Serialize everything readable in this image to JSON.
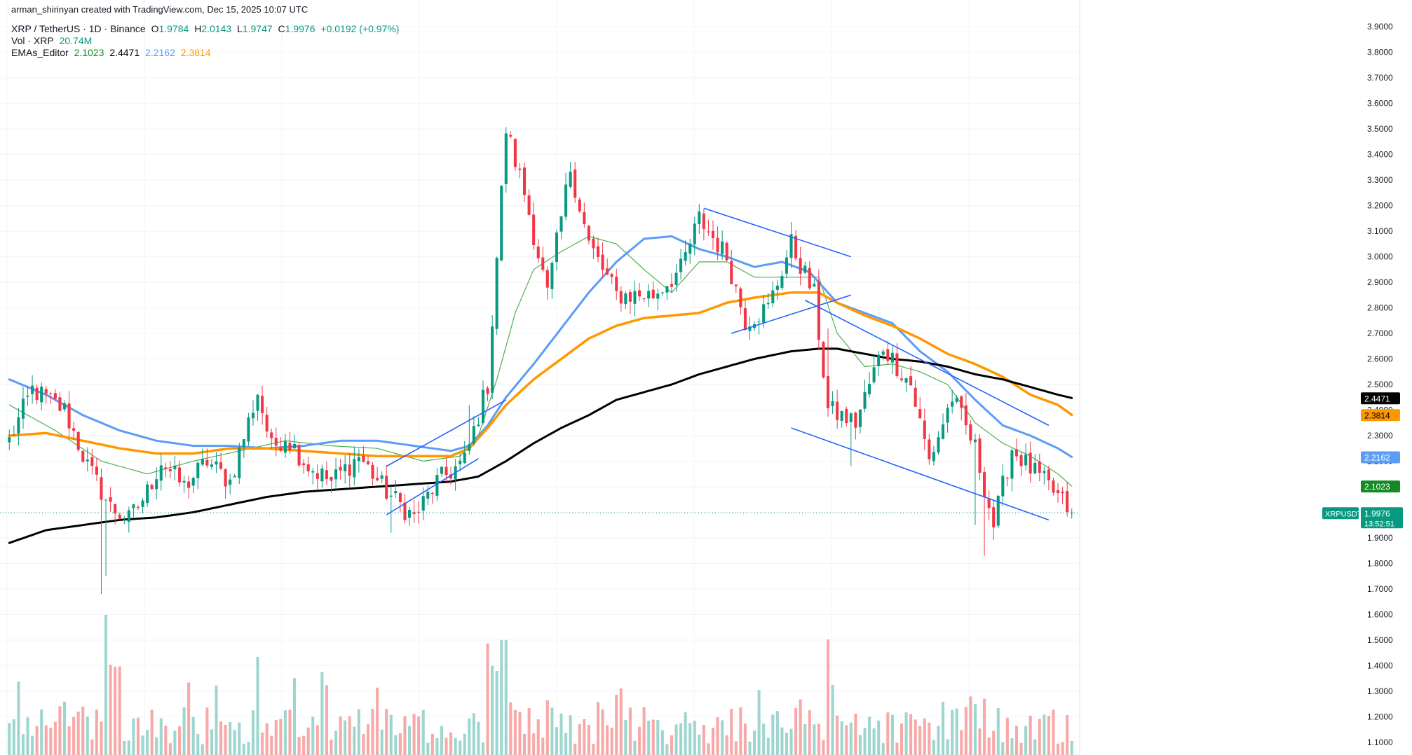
{
  "header": {
    "author_line": "arman_shirinyan created with TradingView.com, Dec 15, 2025 10:07 UTC",
    "symbol": "XRP / TetherUS · 1D · Binance",
    "ohlc": {
      "o_label": "O",
      "o": "1.9784",
      "h_label": "H",
      "h": "2.0143",
      "l_label": "L",
      "l": "1.9747",
      "c_label": "C",
      "c": "1.9976",
      "change": "+0.0192 (+0.97%)"
    },
    "vol": {
      "label": "Vol · XRP",
      "value": "20.74M"
    },
    "emas": {
      "label": "EMAs_Editor",
      "v20": "2.1023",
      "v200": "2.4471",
      "v50": "2.2162",
      "v100": "2.3814"
    }
  },
  "colors": {
    "up": "#089981",
    "down": "#f23645",
    "vol_up": "#9ed6cf",
    "vol_down": "#f7a9a7",
    "ema20": "#4caf50",
    "ema50": "#5b9cf6",
    "ema100": "#ff9800",
    "ema200": "#000000",
    "trend": "#2962ff",
    "grid": "#f0f3fa",
    "axis_text": "#131722",
    "ema20_badge": "#138a23",
    "xrp_badge": "#089981"
  },
  "chart_data": {
    "type": "candlestick",
    "y_axis": {
      "min": 1.05,
      "max": 3.95,
      "ticks": [
        "1.1000",
        "1.2000",
        "1.3000",
        "1.4000",
        "1.5000",
        "1.6000",
        "1.7000",
        "1.8000",
        "1.9000",
        "2.0000",
        "2.1000",
        "2.2000",
        "2.3000",
        "2.4000",
        "2.5000",
        "2.6000",
        "2.7000",
        "2.8000",
        "2.9000",
        "3.0000",
        "3.1000",
        "3.2000",
        "3.3000",
        "3.4000",
        "3.5000",
        "3.6000",
        "3.7000",
        "3.8000",
        "3.9000"
      ]
    },
    "x": {
      "count": 232
    },
    "anchors": [
      [
        0,
        2.28
      ],
      [
        5,
        2.48
      ],
      [
        12,
        2.4
      ],
      [
        17,
        2.18
      ],
      [
        22,
        2.02
      ],
      [
        26,
        1.97
      ],
      [
        30,
        2.08
      ],
      [
        33,
        2.2
      ],
      [
        38,
        2.1
      ],
      [
        43,
        2.2
      ],
      [
        48,
        2.12
      ],
      [
        54,
        2.47
      ],
      [
        57,
        2.25
      ],
      [
        60,
        2.3
      ],
      [
        65,
        2.18
      ],
      [
        70,
        2.12
      ],
      [
        76,
        2.22
      ],
      [
        82,
        2.08
      ],
      [
        88,
        1.98
      ],
      [
        93,
        2.12
      ],
      [
        99,
        2.2
      ],
      [
        104,
        2.5
      ],
      [
        108,
        3.5
      ],
      [
        112,
        3.25
      ],
      [
        117,
        2.85
      ],
      [
        122,
        3.35
      ],
      [
        126,
        3.05
      ],
      [
        132,
        2.85
      ],
      [
        140,
        2.85
      ],
      [
        146,
        2.95
      ],
      [
        150,
        3.15
      ],
      [
        156,
        3.0
      ],
      [
        160,
        2.75
      ],
      [
        165,
        2.8
      ],
      [
        170,
        3.05
      ],
      [
        175,
        2.85
      ],
      [
        178,
        2.4
      ],
      [
        184,
        2.35
      ],
      [
        190,
        2.65
      ],
      [
        196,
        2.5
      ],
      [
        200,
        2.2
      ],
      [
        205,
        2.45
      ],
      [
        210,
        2.25
      ],
      [
        214,
        1.95
      ],
      [
        218,
        2.25
      ],
      [
        222,
        2.17
      ],
      [
        226,
        2.1
      ],
      [
        231,
        1.998
      ]
    ],
    "spikes": [
      [
        20,
        1.68
      ],
      [
        21,
        1.75
      ],
      [
        83,
        1.92
      ],
      [
        178,
        2.72
      ],
      [
        183,
        2.18
      ],
      [
        209,
        2.36
      ],
      [
        212,
        1.83
      ],
      [
        210,
        1.95
      ],
      [
        100,
        2.42
      ]
    ],
    "ema_anchors": {
      "ema20": [
        [
          0,
          2.42
        ],
        [
          10,
          2.32
        ],
        [
          20,
          2.2
        ],
        [
          30,
          2.15
        ],
        [
          40,
          2.2
        ],
        [
          50,
          2.24
        ],
        [
          60,
          2.28
        ],
        [
          70,
          2.26
        ],
        [
          80,
          2.25
        ],
        [
          90,
          2.2
        ],
        [
          98,
          2.22
        ],
        [
          102,
          2.3
        ],
        [
          106,
          2.52
        ],
        [
          110,
          2.78
        ],
        [
          114,
          2.95
        ],
        [
          120,
          3.02
        ],
        [
          126,
          3.08
        ],
        [
          132,
          3.05
        ],
        [
          138,
          2.95
        ],
        [
          144,
          2.86
        ],
        [
          150,
          2.98
        ],
        [
          156,
          2.98
        ],
        [
          162,
          2.92
        ],
        [
          170,
          2.92
        ],
        [
          176,
          2.92
        ],
        [
          180,
          2.7
        ],
        [
          186,
          2.57
        ],
        [
          192,
          2.58
        ],
        [
          198,
          2.55
        ],
        [
          204,
          2.5
        ],
        [
          210,
          2.35
        ],
        [
          216,
          2.27
        ],
        [
          222,
          2.22
        ],
        [
          228,
          2.15
        ],
        [
          231,
          2.1023
        ]
      ],
      "ema50": [
        [
          0,
          2.52
        ],
        [
          8,
          2.46
        ],
        [
          16,
          2.38
        ],
        [
          24,
          2.32
        ],
        [
          32,
          2.28
        ],
        [
          40,
          2.26
        ],
        [
          48,
          2.26
        ],
        [
          56,
          2.25
        ],
        [
          64,
          2.26
        ],
        [
          72,
          2.28
        ],
        [
          80,
          2.28
        ],
        [
          88,
          2.26
        ],
        [
          96,
          2.24
        ],
        [
          100,
          2.26
        ],
        [
          104,
          2.34
        ],
        [
          108,
          2.45
        ],
        [
          114,
          2.58
        ],
        [
          120,
          2.72
        ],
        [
          126,
          2.86
        ],
        [
          132,
          2.98
        ],
        [
          138,
          3.07
        ],
        [
          144,
          3.08
        ],
        [
          150,
          3.03
        ],
        [
          156,
          3.0
        ],
        [
          162,
          2.96
        ],
        [
          168,
          2.98
        ],
        [
          174,
          2.94
        ],
        [
          180,
          2.82
        ],
        [
          186,
          2.78
        ],
        [
          192,
          2.74
        ],
        [
          198,
          2.63
        ],
        [
          204,
          2.55
        ],
        [
          210,
          2.44
        ],
        [
          216,
          2.34
        ],
        [
          222,
          2.3
        ],
        [
          228,
          2.25
        ],
        [
          231,
          2.2162
        ]
      ],
      "ema100": [
        [
          0,
          2.3
        ],
        [
          8,
          2.31
        ],
        [
          16,
          2.28
        ],
        [
          24,
          2.25
        ],
        [
          32,
          2.23
        ],
        [
          40,
          2.23
        ],
        [
          48,
          2.25
        ],
        [
          56,
          2.25
        ],
        [
          64,
          2.24
        ],
        [
          72,
          2.23
        ],
        [
          80,
          2.22
        ],
        [
          88,
          2.22
        ],
        [
          96,
          2.22
        ],
        [
          100,
          2.25
        ],
        [
          104,
          2.33
        ],
        [
          108,
          2.42
        ],
        [
          114,
          2.52
        ],
        [
          120,
          2.6
        ],
        [
          126,
          2.68
        ],
        [
          132,
          2.73
        ],
        [
          138,
          2.76
        ],
        [
          144,
          2.77
        ],
        [
          150,
          2.78
        ],
        [
          156,
          2.82
        ],
        [
          162,
          2.84
        ],
        [
          170,
          2.86
        ],
        [
          176,
          2.86
        ],
        [
          180,
          2.82
        ],
        [
          186,
          2.77
        ],
        [
          192,
          2.73
        ],
        [
          198,
          2.68
        ],
        [
          204,
          2.62
        ],
        [
          210,
          2.58
        ],
        [
          216,
          2.53
        ],
        [
          222,
          2.46
        ],
        [
          228,
          2.42
        ],
        [
          231,
          2.3814
        ]
      ],
      "ema200": [
        [
          0,
          1.88
        ],
        [
          8,
          1.93
        ],
        [
          16,
          1.95
        ],
        [
          24,
          1.97
        ],
        [
          32,
          1.98
        ],
        [
          40,
          2.0
        ],
        [
          48,
          2.03
        ],
        [
          56,
          2.06
        ],
        [
          64,
          2.08
        ],
        [
          72,
          2.09
        ],
        [
          80,
          2.1
        ],
        [
          88,
          2.11
        ],
        [
          96,
          2.12
        ],
        [
          102,
          2.14
        ],
        [
          108,
          2.2
        ],
        [
          114,
          2.27
        ],
        [
          120,
          2.33
        ],
        [
          126,
          2.38
        ],
        [
          132,
          2.44
        ],
        [
          138,
          2.47
        ],
        [
          144,
          2.5
        ],
        [
          150,
          2.54
        ],
        [
          156,
          2.57
        ],
        [
          162,
          2.6
        ],
        [
          170,
          2.63
        ],
        [
          176,
          2.64
        ],
        [
          180,
          2.64
        ],
        [
          186,
          2.62
        ],
        [
          192,
          2.6
        ],
        [
          198,
          2.59
        ],
        [
          204,
          2.57
        ],
        [
          210,
          2.54
        ],
        [
          216,
          2.52
        ],
        [
          222,
          2.49
        ],
        [
          228,
          2.46
        ],
        [
          231,
          2.4471
        ]
      ]
    },
    "trendlines": [
      [
        [
          82,
          2.18
        ],
        [
          108,
          2.44
        ]
      ],
      [
        [
          82,
          1.99
        ],
        [
          102,
          2.21
        ]
      ],
      [
        [
          151,
          3.19
        ],
        [
          183,
          3.0
        ]
      ],
      [
        [
          157,
          2.7
        ],
        [
          183,
          2.85
        ]
      ],
      [
        [
          173,
          2.83
        ],
        [
          226,
          2.34
        ]
      ],
      [
        [
          170,
          2.33
        ],
        [
          226,
          1.97
        ]
      ]
    ],
    "price_labels": [
      {
        "text": "2.4471",
        "value": 2.4471,
        "color_key": "ema200",
        "text_color": "#ffffff"
      },
      {
        "text": "2.3814",
        "value": 2.3814,
        "color_key": "ema100",
        "text_color": "#000000"
      },
      {
        "text": "2.2162",
        "value": 2.2162,
        "color_key": "ema50",
        "text_color": "#ffffff"
      },
      {
        "text": "2.1023",
        "value": 2.1023,
        "color_key": "ema20_badge",
        "text_color": "#ffffff"
      }
    ],
    "current": {
      "symbol": "XRPUSDT",
      "price": "1.9976",
      "value": 1.9976,
      "countdown": "13:52:51"
    }
  }
}
